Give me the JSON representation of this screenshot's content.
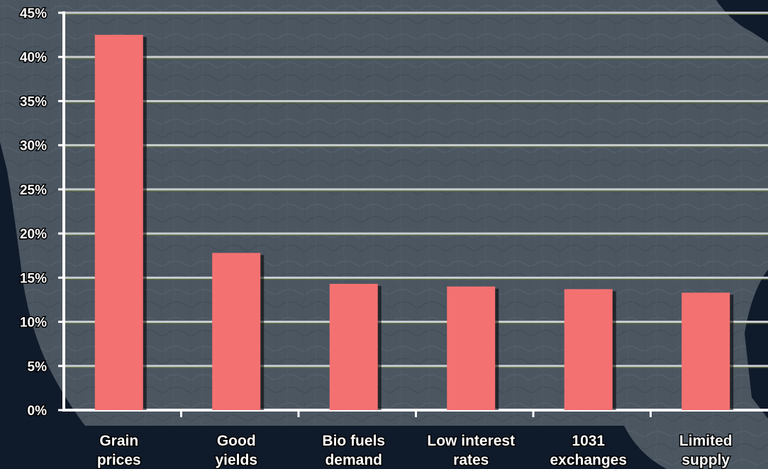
{
  "chart_data": {
    "type": "bar",
    "title": "",
    "xlabel": "",
    "ylabel": "",
    "categories": [
      [
        "Grain",
        "prices"
      ],
      [
        "Good",
        "yields"
      ],
      [
        "Bio fuels",
        "demand"
      ],
      [
        "Low interest",
        "rates"
      ],
      [
        "1031",
        "exchanges"
      ],
      [
        "Limited",
        "supply"
      ]
    ],
    "values": [
      42.5,
      17.8,
      14.3,
      14.0,
      13.7,
      13.3
    ],
    "ylim": [
      0,
      45
    ],
    "yticks": [
      "0%",
      "5%",
      "10%",
      "15%",
      "20%",
      "25%",
      "30%",
      "35%",
      "40%",
      "45%"
    ],
    "grid": true,
    "legend": "none",
    "colors": {
      "bar": "#f47171",
      "gridline": "#c8ccd0",
      "axis": "#ffffff",
      "plot_bg": "#4a5560",
      "map_bg": "#0f1a2a"
    }
  }
}
